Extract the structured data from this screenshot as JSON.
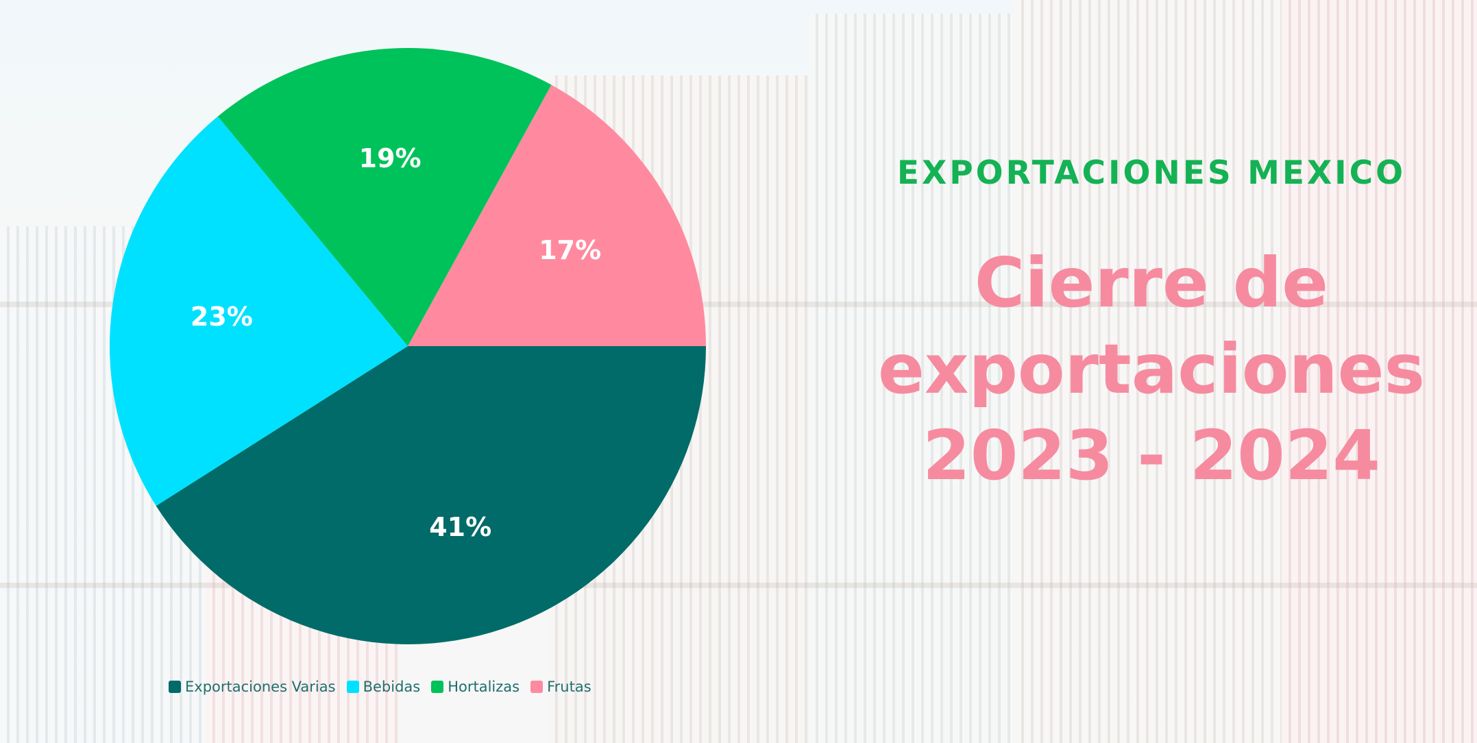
{
  "header": {
    "kicker": "EXPORTACIONES MEXICO",
    "title_line1": "Cierre de",
    "title_line2": "exportaciones",
    "title_line3": "2023 - 2024"
  },
  "colors": {
    "kicker": "#14b254",
    "headline": "#f68ba0"
  },
  "chart_data": {
    "type": "pie",
    "unit": "%",
    "slices": [
      {
        "name": "Exportaciones Varias",
        "value": 41,
        "label": "41%",
        "color": "#006b68"
      },
      {
        "name": "Bebidas",
        "value": 23,
        "label": "23%",
        "color": "#00e1ff"
      },
      {
        "name": "Hortalizas",
        "value": 19,
        "label": "19%",
        "color": "#00c25a"
      },
      {
        "name": "Frutas",
        "value": 17,
        "label": "17%",
        "color": "#ff8aa0"
      }
    ],
    "legend_position": "bottom"
  }
}
